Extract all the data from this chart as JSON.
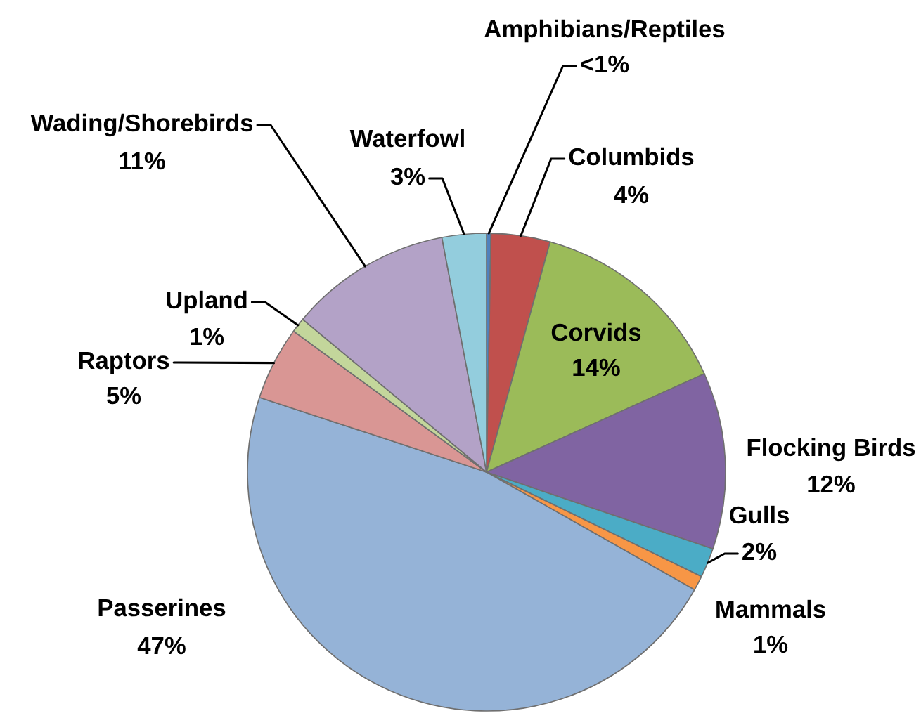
{
  "chart_data": {
    "type": "pie",
    "categories": [
      "Amphibians/Reptiles",
      "Columbids",
      "Corvids",
      "Flocking Birds",
      "Gulls",
      "Mammals",
      "Passerines",
      "Raptors",
      "Upland",
      "Wading/Shorebirds",
      "Waterfowl"
    ],
    "values": [
      0.3,
      4,
      14,
      12,
      2,
      1,
      47,
      5,
      1,
      11,
      3
    ],
    "value_labels": [
      "<1%",
      "4%",
      "14%",
      "12%",
      "2%",
      "1%",
      "47%",
      "5%",
      "1%",
      "11%",
      "3%"
    ],
    "colors": [
      "#4f81bd",
      "#c0504d",
      "#9bbb59",
      "#8064a2",
      "#4bacc6",
      "#f79646",
      "#95b3d7",
      "#d99694",
      "#c3d69b",
      "#b3a2c7",
      "#93cddd"
    ]
  }
}
